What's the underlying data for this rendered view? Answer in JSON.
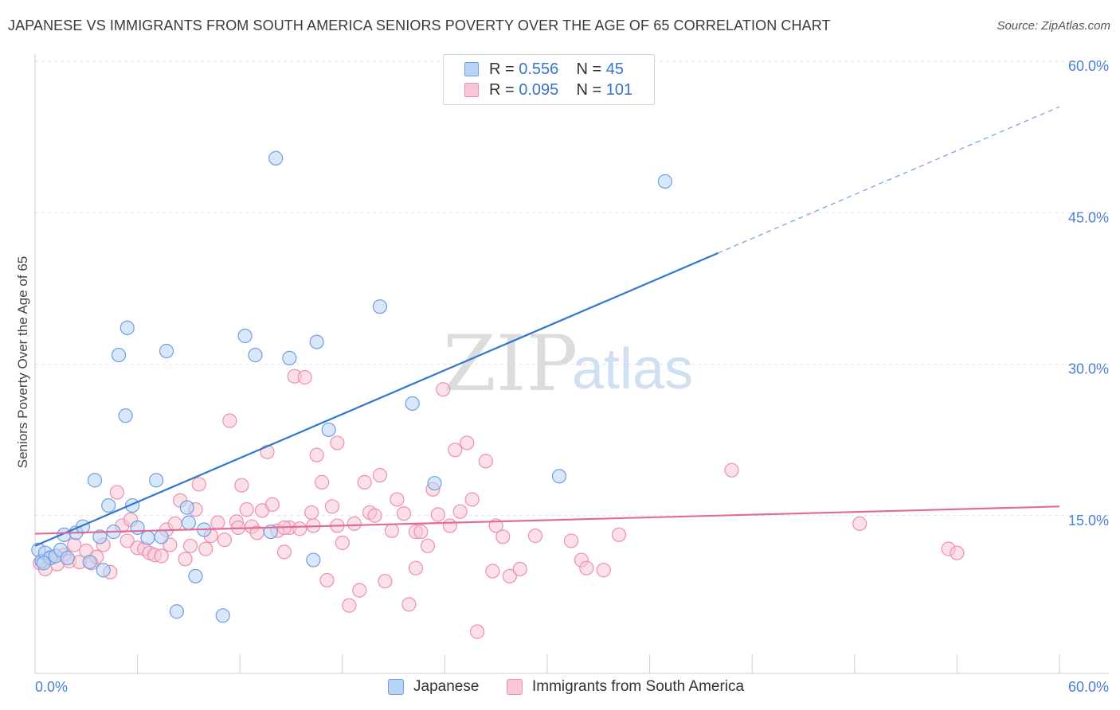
{
  "title": "JAPANESE VS IMMIGRANTS FROM SOUTH AMERICA SENIORS POVERTY OVER THE AGE OF 65 CORRELATION CHART",
  "source": "Source: ZipAtlas.com",
  "watermark": {
    "zip": "ZIP",
    "atlas": "atlas"
  },
  "colors": {
    "japanese_fill": "#b8d3f5",
    "japanese_stroke": "#6f9fe0",
    "japanese_line": "#2f76d2",
    "sa_fill": "#f8c6d6",
    "sa_stroke": "#ee8fae",
    "sa_line": "#e26b96",
    "tick_text": "#4a7fd4",
    "grid": "#e3e3e3"
  },
  "legend": {
    "rows": [
      {
        "r_label": "R = ",
        "r_value": "0.556",
        "n_label": "N = ",
        "n_value": "45"
      },
      {
        "r_label": "R = ",
        "r_value": "0.095",
        "n_label": "N = ",
        "n_value": "101"
      }
    ]
  },
  "chart_data": {
    "type": "scatter",
    "ylabel": "Seniors Poverty Over the Age of 65",
    "xlim": [
      0,
      60
    ],
    "ylim": [
      0,
      60
    ],
    "x_tick_labels": [
      "0.0%",
      "60.0%"
    ],
    "y_ticks": [
      {
        "value": 15,
        "label": "15.0%"
      },
      {
        "value": 30,
        "label": "30.0%"
      },
      {
        "value": 45,
        "label": "45.0%"
      },
      {
        "value": 60,
        "label": "60.0%"
      }
    ],
    "grid": "horizontal dashed",
    "legend_position": "bottom",
    "series": [
      {
        "name": "Japanese",
        "trend": {
          "x0": 0,
          "y0": 12.0,
          "x1": 40,
          "y1": 41.0,
          "extend_to_x": 60,
          "extend_to_y": 55.5
        },
        "points": [
          [
            0.2,
            11.6
          ],
          [
            0.4,
            10.5
          ],
          [
            0.6,
            11.3
          ],
          [
            0.9,
            10.8
          ],
          [
            1.2,
            11.0
          ],
          [
            1.5,
            11.6
          ],
          [
            1.7,
            13.1
          ],
          [
            1.9,
            10.8
          ],
          [
            2.4,
            13.3
          ],
          [
            2.8,
            13.9
          ],
          [
            3.2,
            10.4
          ],
          [
            3.5,
            18.5
          ],
          [
            3.8,
            12.9
          ],
          [
            4.0,
            9.6
          ],
          [
            4.3,
            16.0
          ],
          [
            4.6,
            13.4
          ],
          [
            4.9,
            30.9
          ],
          [
            5.3,
            24.9
          ],
          [
            5.4,
            33.6
          ],
          [
            5.7,
            16.0
          ],
          [
            6.0,
            13.8
          ],
          [
            6.6,
            12.8
          ],
          [
            7.1,
            18.5
          ],
          [
            7.4,
            12.9
          ],
          [
            7.7,
            31.3
          ],
          [
            8.3,
            5.5
          ],
          [
            8.9,
            15.8
          ],
          [
            9.0,
            14.3
          ],
          [
            9.4,
            9.0
          ],
          [
            9.9,
            13.6
          ],
          [
            11.0,
            5.1
          ],
          [
            12.3,
            32.8
          ],
          [
            12.9,
            30.9
          ],
          [
            13.8,
            13.4
          ],
          [
            14.1,
            50.4
          ],
          [
            14.9,
            30.6
          ],
          [
            16.3,
            10.6
          ],
          [
            16.5,
            32.2
          ],
          [
            17.2,
            23.5
          ],
          [
            20.2,
            35.7
          ],
          [
            22.1,
            26.1
          ],
          [
            23.4,
            18.2
          ],
          [
            30.7,
            18.9
          ],
          [
            36.9,
            48.1
          ],
          [
            0.5,
            10.3
          ]
        ]
      },
      {
        "name": "Immigrants from South America",
        "trend": {
          "x0": 0,
          "y0": 13.2,
          "x1": 60,
          "y1": 15.9
        },
        "points": [
          [
            0.3,
            10.3
          ],
          [
            0.6,
            9.7
          ],
          [
            0.9,
            10.9
          ],
          [
            1.3,
            10.2
          ],
          [
            1.7,
            11.1
          ],
          [
            2.0,
            10.5
          ],
          [
            2.3,
            12.1
          ],
          [
            2.6,
            10.4
          ],
          [
            3.0,
            11.5
          ],
          [
            3.3,
            10.3
          ],
          [
            3.6,
            10.9
          ],
          [
            4.0,
            12.1
          ],
          [
            4.4,
            9.4
          ],
          [
            4.8,
            17.3
          ],
          [
            5.1,
            14.0
          ],
          [
            5.4,
            12.5
          ],
          [
            5.6,
            14.6
          ],
          [
            6.0,
            11.8
          ],
          [
            6.4,
            11.7
          ],
          [
            6.7,
            11.3
          ],
          [
            7.0,
            11.1
          ],
          [
            7.4,
            11.0
          ],
          [
            7.7,
            13.6
          ],
          [
            7.9,
            12.1
          ],
          [
            8.2,
            14.2
          ],
          [
            8.5,
            16.5
          ],
          [
            8.8,
            10.7
          ],
          [
            9.1,
            12.0
          ],
          [
            9.4,
            15.6
          ],
          [
            9.6,
            18.1
          ],
          [
            10.0,
            11.7
          ],
          [
            10.3,
            13.0
          ],
          [
            10.7,
            14.3
          ],
          [
            11.1,
            12.6
          ],
          [
            11.4,
            24.4
          ],
          [
            11.8,
            14.4
          ],
          [
            12.1,
            18.0
          ],
          [
            12.4,
            15.6
          ],
          [
            12.7,
            13.9
          ],
          [
            13.0,
            13.3
          ],
          [
            13.3,
            15.5
          ],
          [
            13.6,
            21.3
          ],
          [
            13.9,
            16.1
          ],
          [
            14.2,
            13.5
          ],
          [
            14.6,
            11.4
          ],
          [
            14.9,
            13.8
          ],
          [
            15.2,
            28.8
          ],
          [
            15.5,
            13.7
          ],
          [
            15.8,
            28.7
          ],
          [
            16.2,
            15.3
          ],
          [
            16.5,
            21.0
          ],
          [
            16.8,
            18.3
          ],
          [
            17.1,
            8.6
          ],
          [
            17.4,
            15.9
          ],
          [
            17.7,
            22.2
          ],
          [
            18.0,
            12.3
          ],
          [
            18.4,
            6.1
          ],
          [
            18.7,
            14.2
          ],
          [
            19.0,
            7.6
          ],
          [
            19.3,
            18.3
          ],
          [
            19.6,
            15.3
          ],
          [
            19.9,
            15.0
          ],
          [
            20.2,
            19.0
          ],
          [
            20.5,
            8.5
          ],
          [
            20.9,
            13.5
          ],
          [
            21.2,
            16.6
          ],
          [
            21.6,
            15.2
          ],
          [
            21.9,
            6.2
          ],
          [
            22.3,
            13.4
          ],
          [
            22.6,
            13.4
          ],
          [
            23.0,
            12.0
          ],
          [
            23.3,
            17.6
          ],
          [
            23.6,
            15.1
          ],
          [
            23.9,
            27.5
          ],
          [
            24.3,
            14.0
          ],
          [
            24.6,
            21.5
          ],
          [
            24.9,
            15.4
          ],
          [
            25.3,
            22.2
          ],
          [
            25.6,
            16.6
          ],
          [
            25.9,
            3.5
          ],
          [
            26.4,
            20.4
          ],
          [
            26.8,
            9.5
          ],
          [
            27.0,
            14.0
          ],
          [
            27.4,
            12.9
          ],
          [
            27.8,
            9.0
          ],
          [
            28.4,
            9.7
          ],
          [
            29.3,
            13.0
          ],
          [
            31.4,
            12.5
          ],
          [
            32.0,
            10.6
          ],
          [
            32.3,
            9.8
          ],
          [
            33.3,
            9.6
          ],
          [
            34.2,
            13.1
          ],
          [
            40.8,
            19.5
          ],
          [
            48.3,
            14.2
          ],
          [
            53.5,
            11.7
          ],
          [
            54.0,
            11.3
          ],
          [
            22.3,
            9.8
          ],
          [
            17.7,
            14.0
          ],
          [
            16.3,
            14.0
          ],
          [
            11.9,
            13.8
          ],
          [
            14.6,
            13.8
          ]
        ]
      }
    ]
  },
  "bottom_legend": [
    {
      "label": "Japanese"
    },
    {
      "label": "Immigrants from South America"
    }
  ]
}
